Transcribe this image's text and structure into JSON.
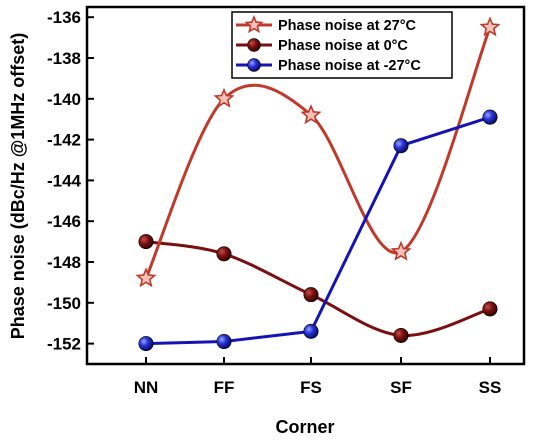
{
  "chart_data": {
    "type": "line",
    "title": "",
    "xlabel": "Corner",
    "ylabel": "Phase noise (dBc/Hz  @1MHz offset)",
    "categories": [
      "NN",
      "FF",
      "FS",
      "SF",
      "SS"
    ],
    "ylim": [
      -153,
      -135.5
    ],
    "yticks": [
      -136,
      -138,
      -140,
      -142,
      -144,
      -146,
      -148,
      -150,
      -152
    ],
    "smooth": true,
    "grid": false,
    "legend_position": "top-right",
    "series": [
      {
        "name": "Phase noise at 27°C",
        "values": [
          -148.8,
          -140.0,
          -140.8,
          -147.5,
          -136.5
        ],
        "color": "#c0392b",
        "marker": "star"
      },
      {
        "name": "Phase noise at 0°C",
        "values": [
          -147.0,
          -147.6,
          -149.6,
          -151.6,
          -150.3
        ],
        "color": "#7b0f0f",
        "marker": "circle"
      },
      {
        "name": "Phase noise at -27°C",
        "values": [
          -152.0,
          -151.9,
          -151.4,
          -142.3,
          -140.9
        ],
        "color": "#1414b4",
        "marker": "circle"
      }
    ]
  }
}
